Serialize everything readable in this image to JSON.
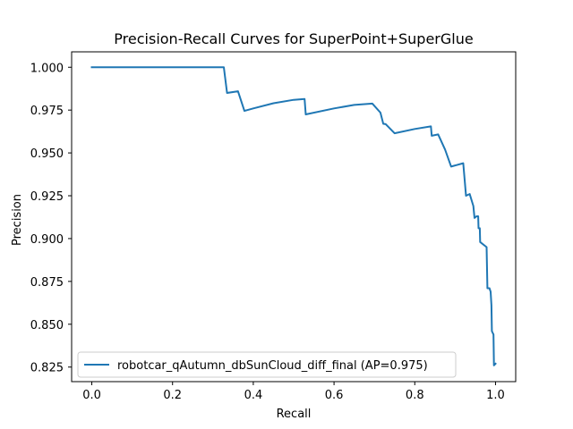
{
  "chart_data": {
    "type": "line",
    "title": "Precision-Recall Curves for SuperPoint+SuperGlue",
    "xlabel": "Recall",
    "ylabel": "Precision",
    "xlim": [
      -0.05,
      1.05
    ],
    "ylim": [
      0.8165,
      1.009
    ],
    "xticks": [
      0.0,
      0.2,
      0.4,
      0.6,
      0.8,
      1.0
    ],
    "xtick_labels": [
      "0.0",
      "0.2",
      "0.4",
      "0.6",
      "0.8",
      "1.0"
    ],
    "yticks": [
      0.825,
      0.85,
      0.875,
      0.9,
      0.925,
      0.95,
      0.975,
      1.0
    ],
    "ytick_labels": [
      "0.825",
      "0.850",
      "0.875",
      "0.900",
      "0.925",
      "0.950",
      "0.975",
      "1.000"
    ],
    "grid": false,
    "legend_position": "lower-left",
    "series": [
      {
        "name": "robotcar_qAutumn_dbSunCloud_diff_final (AP=0.975)",
        "color": "#1f77b4",
        "x": [
          0.0,
          0.327,
          0.335,
          0.362,
          0.378,
          0.4,
          0.45,
          0.5,
          0.527,
          0.53,
          0.6,
          0.65,
          0.695,
          0.715,
          0.722,
          0.728,
          0.75,
          0.8,
          0.84,
          0.842,
          0.858,
          0.875,
          0.89,
          0.92,
          0.927,
          0.936,
          0.945,
          0.948,
          0.953,
          0.957,
          0.958,
          0.961,
          0.962,
          0.978,
          0.98,
          0.985,
          0.988,
          0.99,
          0.991,
          0.995,
          0.996,
          1.0
        ],
        "y": [
          1.0,
          1.0,
          0.985,
          0.986,
          0.9745,
          0.976,
          0.979,
          0.981,
          0.9815,
          0.9725,
          0.976,
          0.978,
          0.9788,
          0.9735,
          0.967,
          0.9668,
          0.9615,
          0.964,
          0.9655,
          0.96,
          0.9608,
          0.952,
          0.942,
          0.944,
          0.925,
          0.926,
          0.919,
          0.912,
          0.913,
          0.913,
          0.906,
          0.906,
          0.898,
          0.895,
          0.871,
          0.871,
          0.869,
          0.861,
          0.846,
          0.844,
          0.826,
          0.827
        ]
      }
    ]
  }
}
